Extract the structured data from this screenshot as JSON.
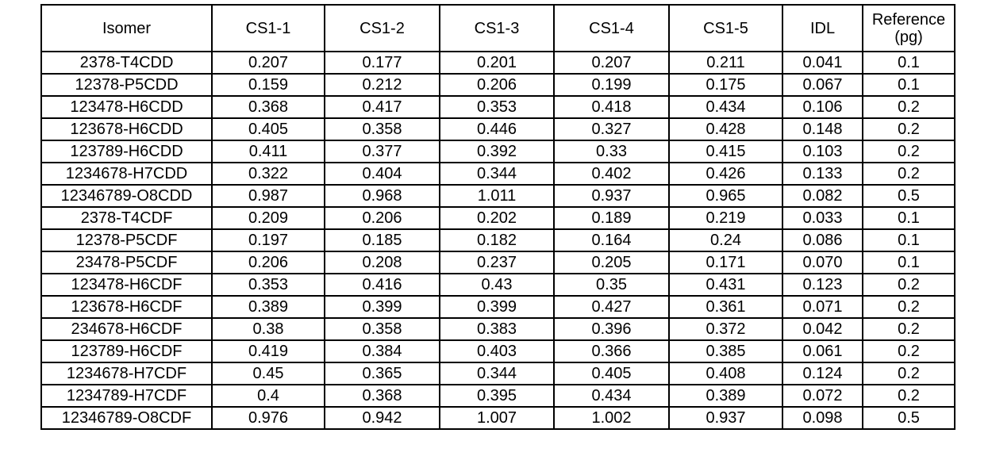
{
  "table": {
    "headers": [
      "Isomer",
      "CS1-1",
      "CS1-2",
      "CS1-3",
      "CS1-4",
      "CS1-5",
      "IDL",
      "Reference (pg)"
    ],
    "rows": [
      [
        "2378-T4CDD",
        "0.207",
        "0.177",
        "0.201",
        "0.207",
        "0.211",
        "0.041",
        "0.1"
      ],
      [
        "12378-P5CDD",
        "0.159",
        "0.212",
        "0.206",
        "0.199",
        "0.175",
        "0.067",
        "0.1"
      ],
      [
        "123478-H6CDD",
        "0.368",
        "0.417",
        "0.353",
        "0.418",
        "0.434",
        "0.106",
        "0.2"
      ],
      [
        "123678-H6CDD",
        "0.405",
        "0.358",
        "0.446",
        "0.327",
        "0.428",
        "0.148",
        "0.2"
      ],
      [
        "123789-H6CDD",
        "0.411",
        "0.377",
        "0.392",
        "0.33",
        "0.415",
        "0.103",
        "0.2"
      ],
      [
        "1234678-H7CDD",
        "0.322",
        "0.404",
        "0.344",
        "0.402",
        "0.426",
        "0.133",
        "0.2"
      ],
      [
        "12346789-O8CDD",
        "0.987",
        "0.968",
        "1.011",
        "0.937",
        "0.965",
        "0.082",
        "0.5"
      ],
      [
        "2378-T4CDF",
        "0.209",
        "0.206",
        "0.202",
        "0.189",
        "0.219",
        "0.033",
        "0.1"
      ],
      [
        "12378-P5CDF",
        "0.197",
        "0.185",
        "0.182",
        "0.164",
        "0.24",
        "0.086",
        "0.1"
      ],
      [
        "23478-P5CDF",
        "0.206",
        "0.208",
        "0.237",
        "0.205",
        "0.171",
        "0.070",
        "0.1"
      ],
      [
        "123478-H6CDF",
        "0.353",
        "0.416",
        "0.43",
        "0.35",
        "0.431",
        "0.123",
        "0.2"
      ],
      [
        "123678-H6CDF",
        "0.389",
        "0.399",
        "0.399",
        "0.427",
        "0.361",
        "0.071",
        "0.2"
      ],
      [
        "234678-H6CDF",
        "0.38",
        "0.358",
        "0.383",
        "0.396",
        "0.372",
        "0.042",
        "0.2"
      ],
      [
        "123789-H6CDF",
        "0.419",
        "0.384",
        "0.403",
        "0.366",
        "0.385",
        "0.061",
        "0.2"
      ],
      [
        "1234678-H7CDF",
        "0.45",
        "0.365",
        "0.344",
        "0.405",
        "0.408",
        "0.124",
        "0.2"
      ],
      [
        "1234789-H7CDF",
        "0.4",
        "0.368",
        "0.395",
        "0.434",
        "0.389",
        "0.072",
        "0.2"
      ],
      [
        "12346789-O8CDF",
        "0.976",
        "0.942",
        "1.007",
        "1.002",
        "0.937",
        "0.098",
        "0.5"
      ]
    ]
  }
}
